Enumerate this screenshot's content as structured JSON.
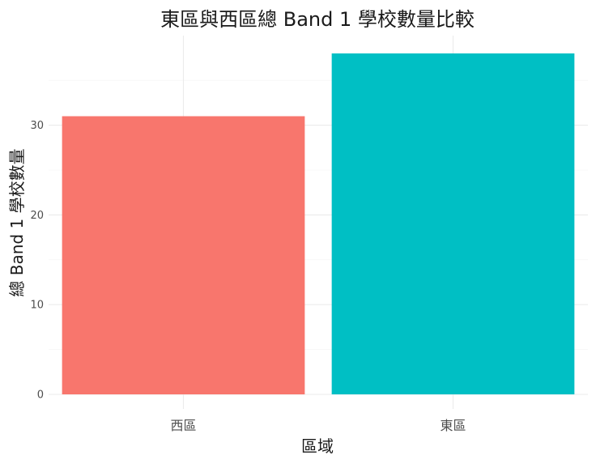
{
  "chart_data": {
    "type": "bar",
    "title": "東區與西區總 Band 1 學校數量比較",
    "xlabel": "區域",
    "ylabel": "總 Band 1 學校數量",
    "categories": [
      "西區",
      "東區"
    ],
    "values": [
      31,
      38
    ],
    "colors": [
      "#F8766D",
      "#00BFC4"
    ],
    "ylim": [
      0,
      40
    ],
    "yticks": [
      "0",
      "10",
      "20",
      "30"
    ],
    "grid": true,
    "legend": "none"
  }
}
